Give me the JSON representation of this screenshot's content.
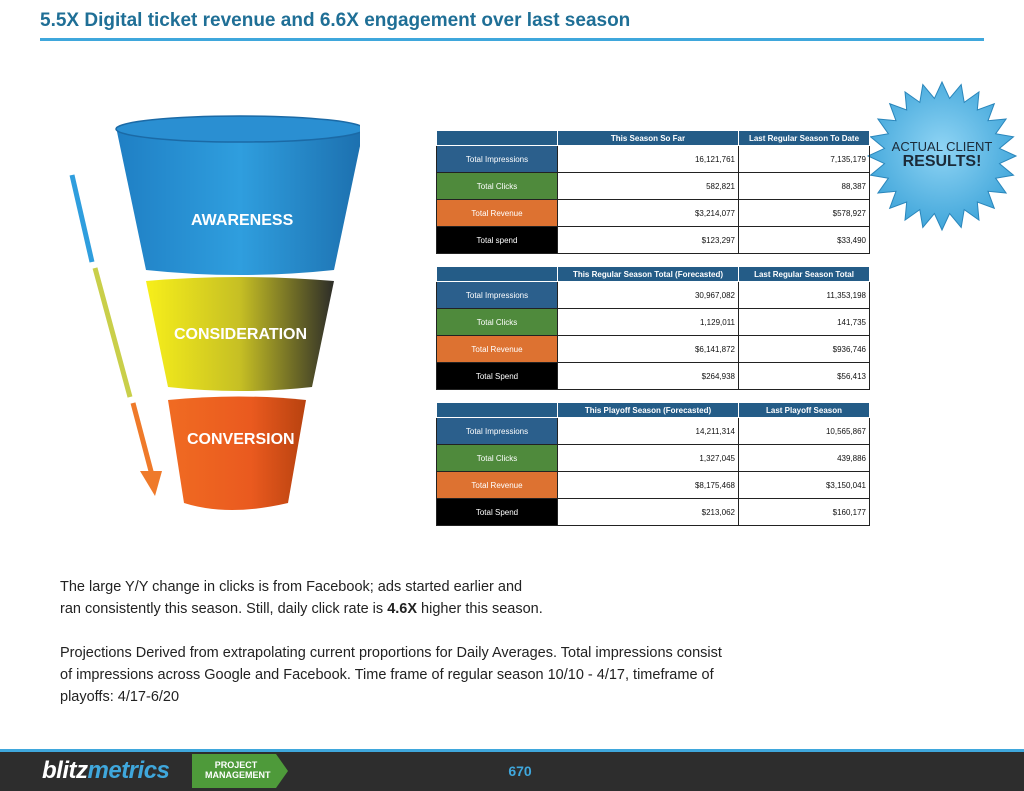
{
  "title": "5.5X Digital ticket revenue and 6.6X engagement over last season",
  "funnel": {
    "stages": [
      "AWARENESS",
      "CONSIDERATION",
      "CONVERSION"
    ]
  },
  "badge": {
    "line1": "ACTUAL CLIENT",
    "line2": "RESULTS!"
  },
  "tables": [
    {
      "headers": [
        "This Season So Far",
        "Last Regular Season To Date"
      ],
      "rows": [
        {
          "label": "Total Impressions",
          "color": "#2b5f8c",
          "values": [
            "16,121,761",
            "7,135,179"
          ]
        },
        {
          "label": "Total Clicks",
          "color": "#4f8a3c",
          "values": [
            "582,821",
            "88,387"
          ]
        },
        {
          "label": "Total Revenue",
          "color": "#dd7231",
          "values": [
            "$3,214,077",
            "$578,927"
          ]
        },
        {
          "label": "Total spend",
          "color": "#000000",
          "values": [
            "$123,297",
            "$33,490"
          ]
        }
      ]
    },
    {
      "headers": [
        "This Regular Season Total (Forecasted)",
        "Last Regular Season Total"
      ],
      "rows": [
        {
          "label": "Total Impressions",
          "color": "#2b5f8c",
          "values": [
            "30,967,082",
            "11,353,198"
          ]
        },
        {
          "label": "Total Clicks",
          "color": "#4f8a3c",
          "values": [
            "1,129,011",
            "141,735"
          ]
        },
        {
          "label": "Total Revenue",
          "color": "#dd7231",
          "values": [
            "$6,141,872",
            "$936,746"
          ]
        },
        {
          "label": "Total Spend",
          "color": "#000000",
          "values": [
            "$264,938",
            "$56,413"
          ]
        }
      ]
    },
    {
      "headers": [
        "This Playoff Season (Forecasted)",
        "Last Playoff Season"
      ],
      "rows": [
        {
          "label": "Total Impressions",
          "color": "#2b5f8c",
          "values": [
            "14,211,314",
            "10,565,867"
          ]
        },
        {
          "label": "Total Clicks",
          "color": "#4f8a3c",
          "values": [
            "1,327,045",
            "439,886"
          ]
        },
        {
          "label": "Total Revenue",
          "color": "#dd7231",
          "values": [
            "$8,175,468",
            "$3,150,041"
          ]
        },
        {
          "label": "Total Spend",
          "color": "#000000",
          "values": [
            "$213,062",
            "$160,177"
          ]
        }
      ]
    }
  ],
  "notes": {
    "p1_line1": "The large Y/Y change in clicks is from Facebook; ads started earlier and",
    "p1_line2_pre": "ran consistently this season. Still, daily click rate is ",
    "p1_line2_bold": "4.6X",
    "p1_line2_post": " higher this season.",
    "p2_line1": "Projections Derived from extrapolating current proportions for Daily Averages. Total impressions consist",
    "p2_line2": "of impressions across Google and Facebook. Time frame of regular season 10/10 - 4/17, timeframe of",
    "p2_line3": "playoffs: 4/17-6/20"
  },
  "footer": {
    "logo_part1": "blitz",
    "logo_part2": "metrics",
    "badge_line1": "PROJECT",
    "badge_line2": "MANAGEMENT",
    "page_number": "670"
  }
}
